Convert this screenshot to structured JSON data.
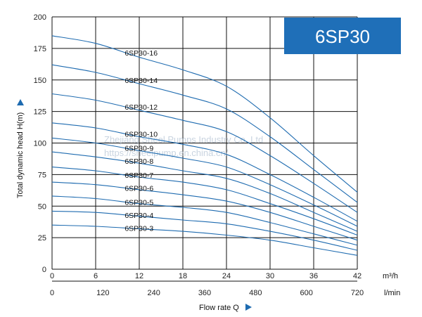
{
  "badge": {
    "text": "6SP30",
    "color": "#1f6fb8"
  },
  "watermark": {
    "line1": "Zhejiang Sheel Pumps Industry Co.,Ltd",
    "line2": "https://sheelpump.en.china.cn/"
  },
  "colors": {
    "curve": "#1e6bb0",
    "grid": "#111111",
    "accent": "#1e6bb0"
  },
  "chart_data": {
    "type": "line",
    "title": "6SP30",
    "ylabel": "Total dynamic head H(m)",
    "xlabel": "Flow rate Q",
    "ylim": [
      0,
      200
    ],
    "xlim": [
      0,
      42
    ],
    "yticks": [
      0,
      25,
      50,
      75,
      100,
      125,
      150,
      175,
      200
    ],
    "xticks_m3h": [
      0,
      6,
      12,
      18,
      24,
      30,
      36,
      42
    ],
    "x_unit_m3h": "m³/h",
    "xticks_lmin": [
      0,
      120,
      240,
      360,
      480,
      600,
      720
    ],
    "x_unit_lmin": "l/min",
    "series": [
      {
        "name": "6SP30-16",
        "label": "6SP30-16",
        "x": [
          0,
          6,
          12,
          18,
          24,
          30,
          36,
          42
        ],
        "values": [
          185,
          179,
          168,
          158,
          145,
          120,
          90,
          61
        ]
      },
      {
        "name": "6SP30-14",
        "label": "6SP30-14",
        "x": [
          0,
          6,
          12,
          18,
          24,
          30,
          36,
          42
        ],
        "values": [
          162,
          156,
          147,
          138,
          127,
          105,
          79,
          53
        ]
      },
      {
        "name": "6SP30-12",
        "label": "6SP30-12",
        "x": [
          0,
          6,
          12,
          18,
          24,
          30,
          36,
          42
        ],
        "values": [
          139,
          134,
          126,
          118,
          109,
          90,
          68,
          45
        ]
      },
      {
        "name": "6SP30-10",
        "label": "6SP30-10",
        "x": [
          0,
          6,
          12,
          18,
          24,
          30,
          36,
          42
        ],
        "values": [
          116,
          112,
          105,
          99,
          91,
          75,
          57,
          38
        ]
      },
      {
        "name": "6SP30-9",
        "label": "6SP30-9",
        "x": [
          0,
          6,
          12,
          18,
          24,
          30,
          36,
          42
        ],
        "values": [
          104,
          100,
          94,
          88,
          81,
          67,
          51,
          34
        ]
      },
      {
        "name": "6SP30-8",
        "label": "6SP30-8",
        "x": [
          0,
          6,
          12,
          18,
          24,
          30,
          36,
          42
        ],
        "values": [
          93,
          89,
          84,
          78,
          72,
          60,
          45,
          30
        ]
      },
      {
        "name": "6SP30-7",
        "label": "6SP30-7",
        "x": [
          0,
          6,
          12,
          18,
          24,
          30,
          36,
          42
        ],
        "values": [
          81,
          78,
          73,
          69,
          63,
          52,
          40,
          27
        ]
      },
      {
        "name": "6SP30-6",
        "label": "6SP30-6",
        "x": [
          0,
          6,
          12,
          18,
          24,
          30,
          36,
          42
        ],
        "values": [
          69,
          67,
          63,
          59,
          54,
          45,
          34,
          23
        ]
      },
      {
        "name": "6SP30-5",
        "label": "6SP30-5",
        "x": [
          0,
          6,
          12,
          18,
          24,
          30,
          36,
          42
        ],
        "values": [
          58,
          56,
          52,
          49,
          45,
          37,
          28,
          19
        ]
      },
      {
        "name": "6SP30-4",
        "label": "6SP30-4",
        "x": [
          0,
          6,
          12,
          18,
          24,
          30,
          36,
          42
        ],
        "values": [
          46,
          45,
          42,
          39,
          36,
          30,
          23,
          15
        ]
      },
      {
        "name": "6SP30-3",
        "label": "6SP30-3",
        "x": [
          0,
          6,
          12,
          18,
          24,
          30,
          36,
          42
        ],
        "values": [
          35,
          34,
          32,
          30,
          27,
          23,
          17,
          11
        ]
      }
    ]
  }
}
